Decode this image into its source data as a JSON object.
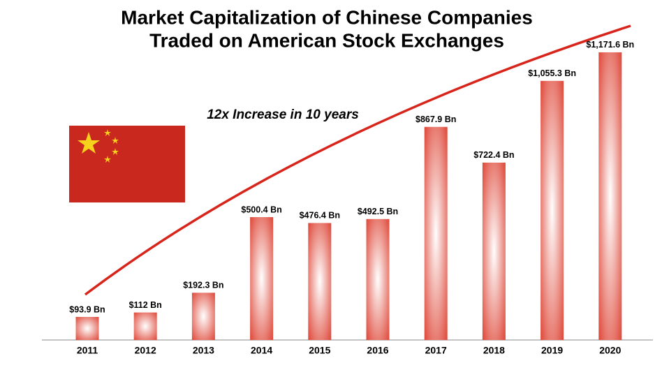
{
  "chart_data": {
    "type": "bar",
    "title": [
      "Market Capitalization of Chinese Companies",
      "Traded on American Stock Exchanges"
    ],
    "annotation": "12x Increase in 10 years",
    "categories": [
      "2011",
      "2012",
      "2013",
      "2014",
      "2015",
      "2016",
      "2017",
      "2018",
      "2019",
      "2020"
    ],
    "values": [
      93.9,
      112,
      192.3,
      500.4,
      476.4,
      492.5,
      867.9,
      722.4,
      1055.3,
      1171.6
    ],
    "value_labels": [
      "$93.9 Bn",
      "$112 Bn",
      "$192.3 Bn",
      "$500.4 Bn",
      "$476.4 Bn",
      "$492.5 Bn",
      "$867.9 Bn",
      "$722.4 Bn",
      "$1,055.3 Bn",
      "$1,171.6 Bn"
    ],
    "color": "#dc3a2a"
  }
}
